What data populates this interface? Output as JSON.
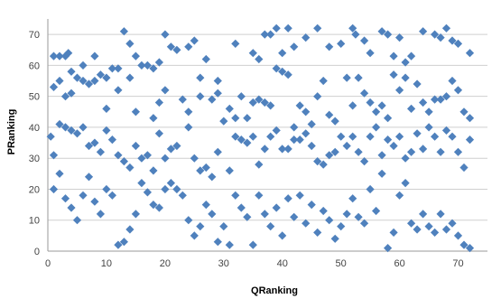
{
  "chart_data": {
    "type": "scatter",
    "title": "",
    "xlabel": "QRanking",
    "ylabel": "PRanking",
    "xlim": [
      0,
      75
    ],
    "ylim": [
      0,
      75
    ],
    "xticks": [
      0,
      10,
      20,
      30,
      40,
      50,
      60,
      70
    ],
    "yticks": [
      0,
      10,
      20,
      30,
      40,
      50,
      60,
      70
    ],
    "grid": "horizontal",
    "legend": "none",
    "marker": "diamond",
    "colors": {
      "marker": "#4F81BD",
      "grid": "#CFCFCF",
      "axis": "#9A9A9A"
    },
    "series": [
      {
        "points": [
          [
            1,
            63
          ],
          [
            2,
            63
          ],
          [
            3,
            63
          ],
          [
            3.5,
            64
          ],
          [
            4,
            58
          ],
          [
            5,
            56
          ],
          [
            6,
            55
          ],
          [
            7,
            54
          ],
          [
            8,
            55
          ],
          [
            9,
            57
          ],
          [
            10,
            56
          ],
          [
            11,
            59
          ],
          [
            12,
            59
          ],
          [
            13,
            71
          ],
          [
            14,
            67
          ],
          [
            15,
            63
          ],
          [
            16,
            60
          ],
          [
            17,
            60
          ],
          [
            18,
            59
          ],
          [
            19,
            61
          ],
          [
            20,
            70
          ],
          [
            21,
            66
          ],
          [
            22,
            65
          ],
          [
            24,
            66
          ],
          [
            25,
            68
          ],
          [
            26,
            56
          ],
          [
            27,
            62
          ],
          [
            29,
            55
          ],
          [
            32,
            67
          ],
          [
            35,
            64
          ],
          [
            36,
            62
          ],
          [
            37,
            70
          ],
          [
            38,
            70
          ],
          [
            39,
            72
          ],
          [
            40,
            64
          ],
          [
            41,
            72
          ],
          [
            42,
            66
          ],
          [
            44,
            69
          ],
          [
            46,
            72
          ],
          [
            48,
            66
          ],
          [
            50,
            67
          ],
          [
            52,
            72
          ],
          [
            52.5,
            70
          ],
          [
            54,
            68
          ],
          [
            55,
            64
          ],
          [
            57,
            71
          ],
          [
            58,
            70
          ],
          [
            59,
            63
          ],
          [
            60,
            69
          ],
          [
            61,
            61
          ],
          [
            62,
            63
          ],
          [
            64,
            71
          ],
          [
            66,
            70
          ],
          [
            67,
            69
          ],
          [
            68,
            72
          ],
          [
            69,
            68
          ],
          [
            70,
            67
          ],
          [
            72,
            64
          ],
          [
            1,
            53
          ],
          [
            2,
            55
          ],
          [
            3,
            50
          ],
          [
            4,
            51
          ],
          [
            6,
            60
          ],
          [
            8,
            63
          ],
          [
            10,
            46
          ],
          [
            12,
            52
          ],
          [
            14,
            56
          ],
          [
            15,
            45
          ],
          [
            18,
            43
          ],
          [
            19,
            48
          ],
          [
            20,
            52
          ],
          [
            23,
            49
          ],
          [
            24,
            45
          ],
          [
            26,
            50
          ],
          [
            28,
            49
          ],
          [
            29,
            51
          ],
          [
            31,
            46
          ],
          [
            32,
            43
          ],
          [
            33,
            50
          ],
          [
            34,
            43
          ],
          [
            35,
            48
          ],
          [
            36,
            49
          ],
          [
            37,
            48
          ],
          [
            38,
            47
          ],
          [
            39,
            59
          ],
          [
            40,
            58
          ],
          [
            41,
            57
          ],
          [
            42,
            40
          ],
          [
            43,
            47
          ],
          [
            44,
            45
          ],
          [
            45,
            41
          ],
          [
            46,
            50
          ],
          [
            47,
            55
          ],
          [
            48,
            44
          ],
          [
            49,
            42
          ],
          [
            51,
            56
          ],
          [
            52,
            47
          ],
          [
            53,
            56
          ],
          [
            54,
            51
          ],
          [
            55,
            48
          ],
          [
            56,
            45
          ],
          [
            57,
            47
          ],
          [
            58,
            43
          ],
          [
            59,
            57
          ],
          [
            60,
            52
          ],
          [
            61,
            56
          ],
          [
            62,
            46
          ],
          [
            63,
            54
          ],
          [
            64,
            48
          ],
          [
            65,
            45
          ],
          [
            66,
            49
          ],
          [
            67,
            49
          ],
          [
            68,
            50
          ],
          [
            69,
            55
          ],
          [
            70,
            52
          ],
          [
            71,
            45
          ],
          [
            72,
            43
          ],
          [
            0.5,
            37
          ],
          [
            1,
            31
          ],
          [
            2,
            41
          ],
          [
            3,
            40
          ],
          [
            4,
            39
          ],
          [
            5,
            38
          ],
          [
            6,
            40
          ],
          [
            7,
            34
          ],
          [
            8,
            35
          ],
          [
            9,
            32
          ],
          [
            10,
            39
          ],
          [
            11,
            36
          ],
          [
            12,
            31
          ],
          [
            13,
            29
          ],
          [
            14,
            27
          ],
          [
            15,
            34
          ],
          [
            16,
            30
          ],
          [
            17,
            31
          ],
          [
            18,
            26
          ],
          [
            19,
            38
          ],
          [
            20,
            30
          ],
          [
            21,
            33
          ],
          [
            22,
            34
          ],
          [
            24,
            40
          ],
          [
            25,
            30
          ],
          [
            26,
            26
          ],
          [
            27,
            27
          ],
          [
            28,
            24
          ],
          [
            29,
            32
          ],
          [
            30,
            42
          ],
          [
            31,
            26
          ],
          [
            32,
            37
          ],
          [
            33,
            36
          ],
          [
            34,
            35
          ],
          [
            35,
            37
          ],
          [
            36,
            28
          ],
          [
            37,
            33
          ],
          [
            38,
            37
          ],
          [
            39,
            39
          ],
          [
            40,
            33
          ],
          [
            41,
            33
          ],
          [
            42,
            36
          ],
          [
            43,
            36
          ],
          [
            44,
            38
          ],
          [
            45,
            34
          ],
          [
            46,
            29
          ],
          [
            47,
            28
          ],
          [
            48,
            31
          ],
          [
            49,
            32
          ],
          [
            50,
            37
          ],
          [
            51,
            34
          ],
          [
            52,
            37
          ],
          [
            53,
            32
          ],
          [
            54,
            29
          ],
          [
            55,
            37
          ],
          [
            56,
            40
          ],
          [
            57,
            31
          ],
          [
            58,
            36
          ],
          [
            59,
            34
          ],
          [
            60,
            37
          ],
          [
            61,
            30
          ],
          [
            62,
            32
          ],
          [
            63,
            38
          ],
          [
            64,
            33
          ],
          [
            65,
            40
          ],
          [
            66,
            37
          ],
          [
            67,
            32
          ],
          [
            68,
            39
          ],
          [
            69,
            37
          ],
          [
            70,
            32
          ],
          [
            71,
            27
          ],
          [
            72,
            36
          ],
          [
            1,
            20
          ],
          [
            2,
            25
          ],
          [
            3,
            17
          ],
          [
            4,
            14
          ],
          [
            5,
            10
          ],
          [
            6,
            18
          ],
          [
            7,
            24
          ],
          [
            8,
            16
          ],
          [
            9,
            12
          ],
          [
            10,
            20
          ],
          [
            11,
            18
          ],
          [
            12,
            2
          ],
          [
            13,
            3
          ],
          [
            14,
            7
          ],
          [
            15,
            12
          ],
          [
            16,
            22
          ],
          [
            17,
            19
          ],
          [
            18,
            15
          ],
          [
            19,
            14
          ],
          [
            20,
            20
          ],
          [
            21,
            22
          ],
          [
            22,
            20
          ],
          [
            23,
            18
          ],
          [
            24,
            10
          ],
          [
            25,
            5
          ],
          [
            26,
            8
          ],
          [
            27,
            15
          ],
          [
            28,
            12
          ],
          [
            29,
            3
          ],
          [
            30,
            8
          ],
          [
            31,
            2
          ],
          [
            32,
            18
          ],
          [
            33,
            14
          ],
          [
            34,
            11
          ],
          [
            35,
            2
          ],
          [
            36,
            18
          ],
          [
            37,
            12
          ],
          [
            38,
            8
          ],
          [
            39,
            14
          ],
          [
            40,
            5
          ],
          [
            41,
            17
          ],
          [
            42,
            11
          ],
          [
            43,
            18
          ],
          [
            44,
            9
          ],
          [
            45,
            15
          ],
          [
            46,
            6
          ],
          [
            47,
            13
          ],
          [
            48,
            10
          ],
          [
            49,
            4
          ],
          [
            50,
            8
          ],
          [
            51,
            12
          ],
          [
            52,
            17
          ],
          [
            53,
            11
          ],
          [
            54,
            9
          ],
          [
            55,
            20
          ],
          [
            56,
            13
          ],
          [
            57,
            25
          ],
          [
            58,
            1
          ],
          [
            59,
            6
          ],
          [
            60,
            18
          ],
          [
            61,
            22
          ],
          [
            62,
            9
          ],
          [
            63,
            7
          ],
          [
            64,
            12
          ],
          [
            65,
            8
          ],
          [
            66,
            6
          ],
          [
            67,
            12
          ],
          [
            68,
            7
          ],
          [
            69,
            9
          ],
          [
            70,
            5
          ],
          [
            71,
            2
          ],
          [
            72,
            1
          ]
        ]
      }
    ]
  }
}
